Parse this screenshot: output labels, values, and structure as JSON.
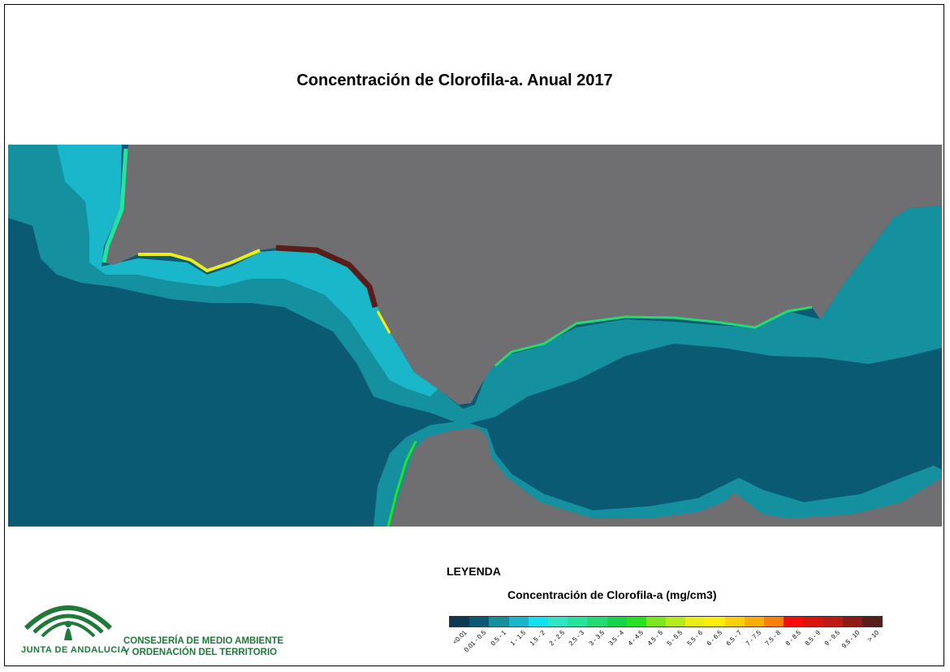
{
  "title": "Concentración de Clorofila-a. Anual 2017",
  "legend": {
    "heading": "LEYENDA",
    "subtitle": "Concentración de Clorofila-a (mg/cm3)",
    "classes": [
      {
        "label": "<0.01",
        "color": "#0d3a52"
      },
      {
        "label": "0.01 - 0.5",
        "color": "#0b5a74"
      },
      {
        "label": "0.5 - 1",
        "color": "#14909f"
      },
      {
        "label": "1 - 1.5",
        "color": "#1ab6c9"
      },
      {
        "label": "1.5 - 2",
        "color": "#14e1ef"
      },
      {
        "label": "2 - 2.5",
        "color": "#2ee6c1"
      },
      {
        "label": "2.5 - 3",
        "color": "#26e39b"
      },
      {
        "label": "3 - 3.5",
        "color": "#22db74"
      },
      {
        "label": "3.5 - 4",
        "color": "#16d24c"
      },
      {
        "label": "4 - 4.5",
        "color": "#27e21f"
      },
      {
        "label": "4.5 - 5",
        "color": "#7ee61c"
      },
      {
        "label": "5 - 5.5",
        "color": "#b5ea1c"
      },
      {
        "label": "5.5 - 6",
        "color": "#e8ef17"
      },
      {
        "label": "6 - 6.5",
        "color": "#fbee08"
      },
      {
        "label": "6.5 - 7",
        "color": "#fbcf09"
      },
      {
        "label": "7 - 7.5",
        "color": "#fbad07"
      },
      {
        "label": "7.5 - 8",
        "color": "#fb7f0a"
      },
      {
        "label": "8 - 8.5",
        "color": "#f90c0c"
      },
      {
        "label": "8.5 - 9",
        "color": "#d8140d"
      },
      {
        "label": "9 - 9.5",
        "color": "#bb1b12"
      },
      {
        "label": "9.5 - 10",
        "color": "#8f1916"
      },
      {
        "label": "> 10",
        "color": "#5a1d1a"
      }
    ]
  },
  "colors": {
    "land": "#6f6f72",
    "sea_low": "#0b5a74"
  },
  "logo": {
    "org_name": "JUNTA DE ANDALUCIA"
  },
  "department": {
    "line1": "CONSEJERÍA DE MEDIO AMBIENTE",
    "line2": "Y ORDENACIÓN DEL TERRITORIO"
  }
}
